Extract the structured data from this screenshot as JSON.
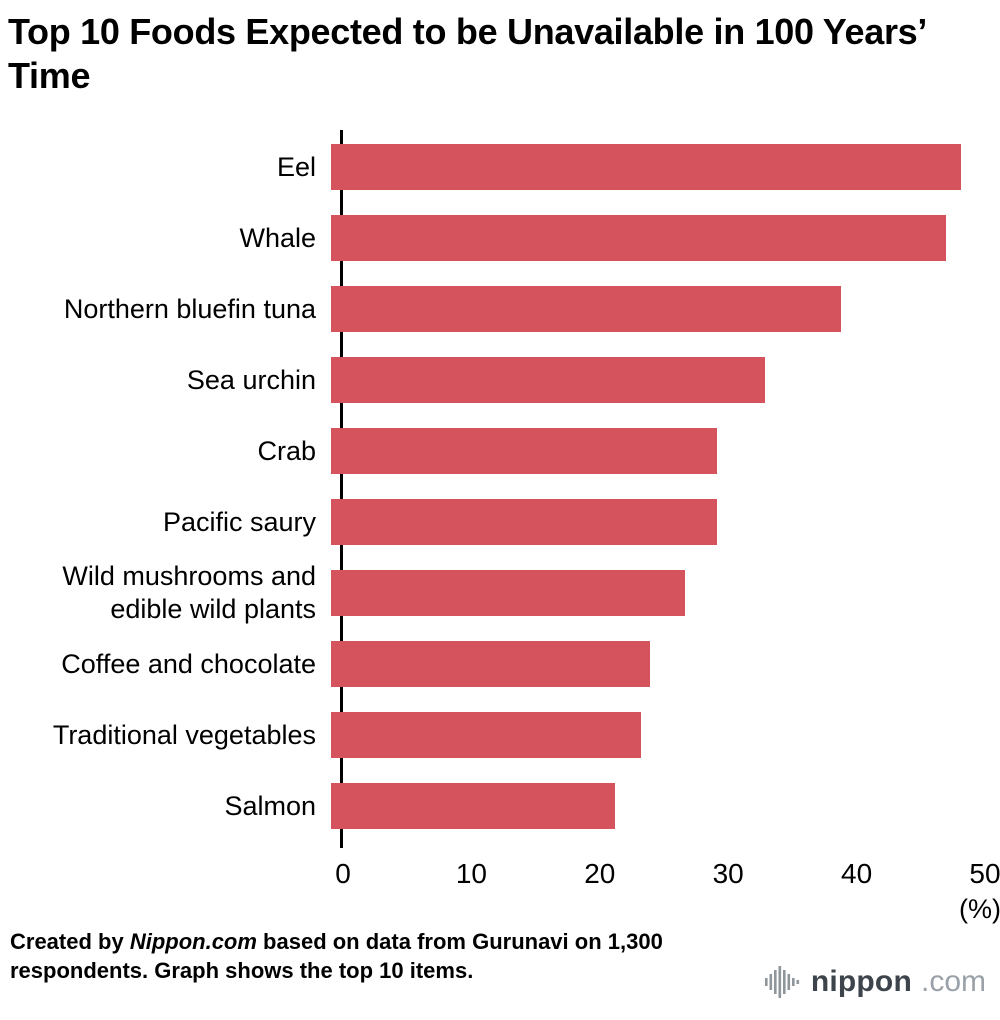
{
  "title": "Top 10 Foods Expected to be Unavailable in 100 Years’ Time",
  "chart_data": {
    "type": "bar",
    "orientation": "horizontal",
    "title": "Top 10 Foods Expected to be Unavailable in 100 Years’ Time",
    "categories": [
      "Eel",
      "Whale",
      "Northern bluefin tuna",
      "Sea urchin",
      "Crab",
      "Pacific saury",
      "Wild mushrooms and edible wild plants",
      "Coffee and chocolate",
      "Traditional vegetables",
      "Salmon"
    ],
    "values": [
      48.2,
      47.0,
      39.0,
      33.2,
      29.5,
      29.5,
      27.1,
      24.4,
      23.7,
      21.7
    ],
    "xlabel": "",
    "ylabel": "",
    "xlim": [
      0,
      50
    ],
    "xticks": [
      0,
      10,
      20,
      30,
      40,
      50
    ],
    "xunit": "(%)",
    "bar_color": "#d4535c",
    "grid": false,
    "legend": "none"
  },
  "footer": {
    "prefix": "Created by ",
    "brand": "Nippon.com",
    "suffix": " based on data from Gurunavi on 1,300 respondents. Graph shows the top 10 items."
  },
  "logo": {
    "name": "nippon",
    "tld": ".com"
  }
}
